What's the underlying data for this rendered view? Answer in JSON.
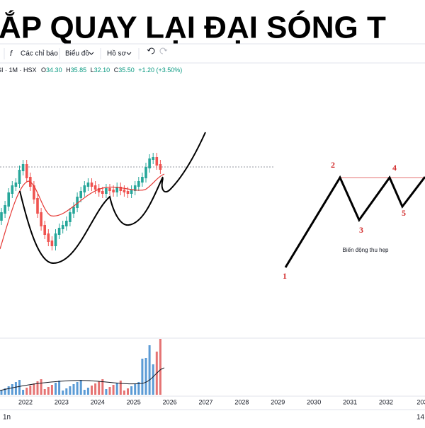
{
  "header": {
    "title": "ẮP QUAY LẠI ĐẠI SÓNG T"
  },
  "toolbar": {
    "indicators": "Các chỉ báo",
    "chart": "Biểu đồ",
    "profile": "Hồ sơ"
  },
  "legend": {
    "symbol": "SI · 1M · HSX",
    "open_label": "O",
    "open": "34.30",
    "high_label": "H",
    "high": "35.85",
    "low_label": "L",
    "low": "32.10",
    "close_label": "C",
    "close": "35.50",
    "change": "+1.20 (+3.50%)"
  },
  "waves": {
    "labels": [
      "1",
      "2",
      "3",
      "4",
      "5"
    ],
    "note": "Biến động thu hẹp"
  },
  "x_axis": {
    "labels": [
      "2022",
      "2023",
      "2024",
      "2025",
      "2026",
      "2027",
      "2028",
      "2029",
      "2030",
      "2031",
      "2032",
      "203"
    ]
  },
  "footer": {
    "interval": "1n",
    "time": "14:"
  }
}
